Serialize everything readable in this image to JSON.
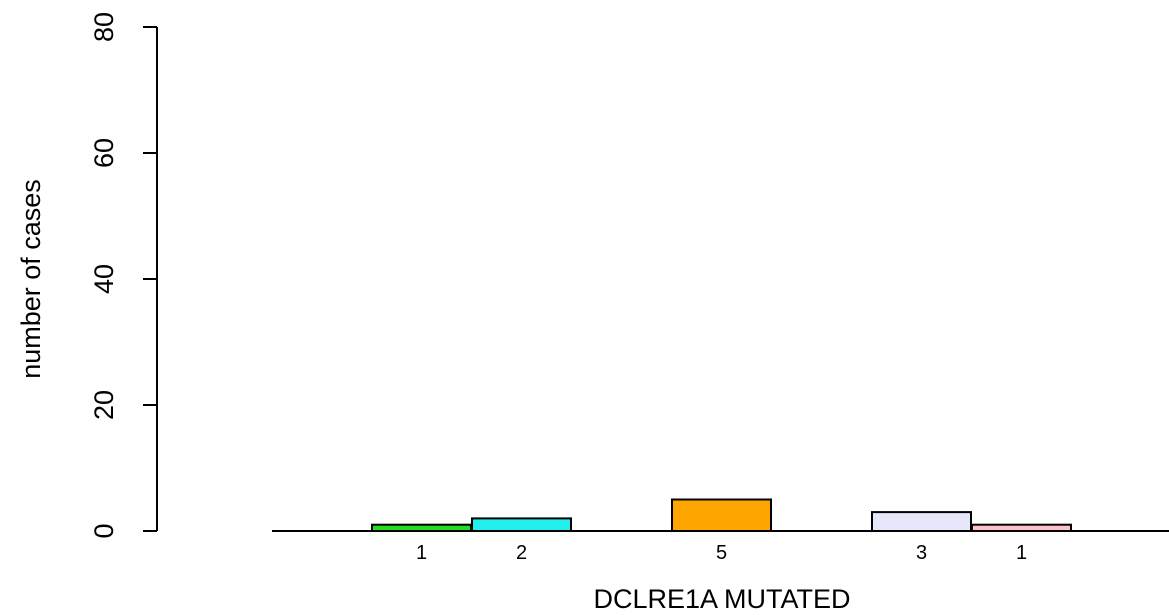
{
  "chart_data": {
    "type": "bar",
    "title": "",
    "xlabel": "DCLRE1A MUTATED",
    "ylabel": "number of cases",
    "ylim": [
      0,
      80
    ],
    "yticks": [
      0,
      20,
      40,
      60,
      80
    ],
    "grid": false,
    "legend": "none",
    "bars": [
      {
        "value": 1,
        "label": "1",
        "color": "#22dd22"
      },
      {
        "value": 2,
        "label": "2",
        "color": "#22eeee"
      },
      {
        "value": 5,
        "label": "5",
        "color": "#ffa500"
      },
      {
        "value": 3,
        "label": "3",
        "color": "#e6e6fa"
      },
      {
        "value": 1,
        "label": "1",
        "color": "#ffc0cb"
      }
    ]
  }
}
